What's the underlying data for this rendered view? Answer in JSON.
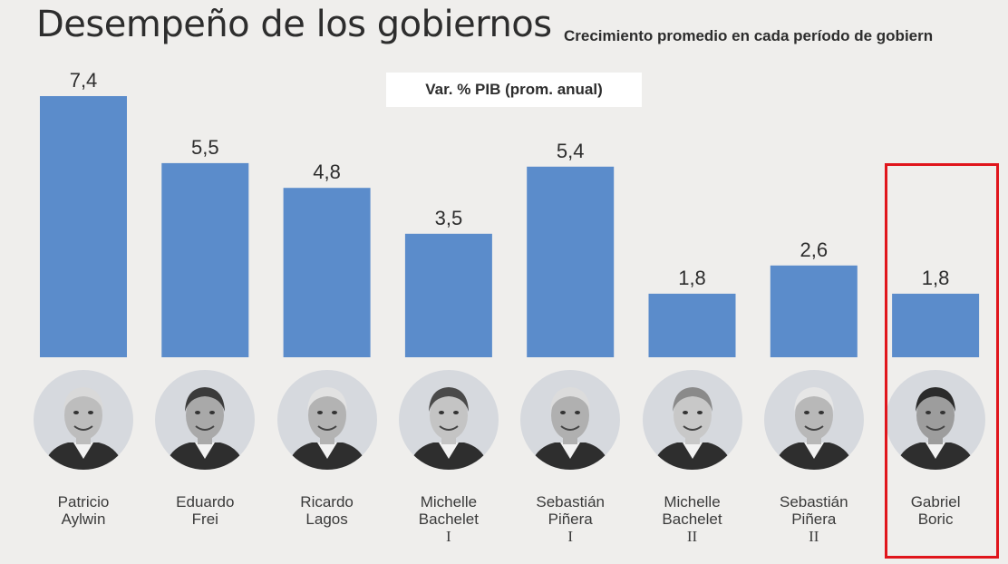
{
  "title": "Desempeño de los gobiernos",
  "subtitle": "Crecimiento promedio en cada período de gobiern",
  "colors": {
    "bar": "#5b8ccb",
    "background": "#efeeec",
    "highlight": "#e0151c",
    "portrait_bg": "#d6d9de"
  },
  "chart_data": {
    "type": "bar",
    "ylabel": "Var. % PIB (prom. anual)",
    "xlabel": "",
    "categories": [
      [
        "Patricio",
        "Aylwin"
      ],
      [
        "Eduardo",
        "Frei"
      ],
      [
        "Ricardo",
        "Lagos"
      ],
      [
        "Michelle",
        "Bachelet",
        "I"
      ],
      [
        "Sebastián",
        "Piñera",
        "I"
      ],
      [
        "Michelle",
        "Bachelet",
        "II"
      ],
      [
        "Sebastián",
        "Piñera",
        "II"
      ],
      [
        "Gabriel",
        "Boric"
      ]
    ],
    "values": [
      7.4,
      5.5,
      4.8,
      3.5,
      5.4,
      1.8,
      2.6,
      1.8
    ],
    "value_labels": [
      "7,4",
      "5,5",
      "4,8",
      "3,5",
      "5,4",
      "1,8",
      "2,6",
      "1,8"
    ],
    "ylim": [
      0,
      7.4
    ],
    "grid": false,
    "legend": "none",
    "highlighted_category": "Gabriel Boric"
  },
  "portraits": [
    {
      "icon": "portrait-patricio-aylwin-icon"
    },
    {
      "icon": "portrait-eduardo-frei-icon"
    },
    {
      "icon": "portrait-ricardo-lagos-icon"
    },
    {
      "icon": "portrait-michelle-bachelet-i-icon"
    },
    {
      "icon": "portrait-sebastian-pinera-i-icon"
    },
    {
      "icon": "portrait-michelle-bachelet-ii-icon"
    },
    {
      "icon": "portrait-sebastian-pinera-ii-icon"
    },
    {
      "icon": "portrait-gabriel-boric-icon"
    }
  ]
}
